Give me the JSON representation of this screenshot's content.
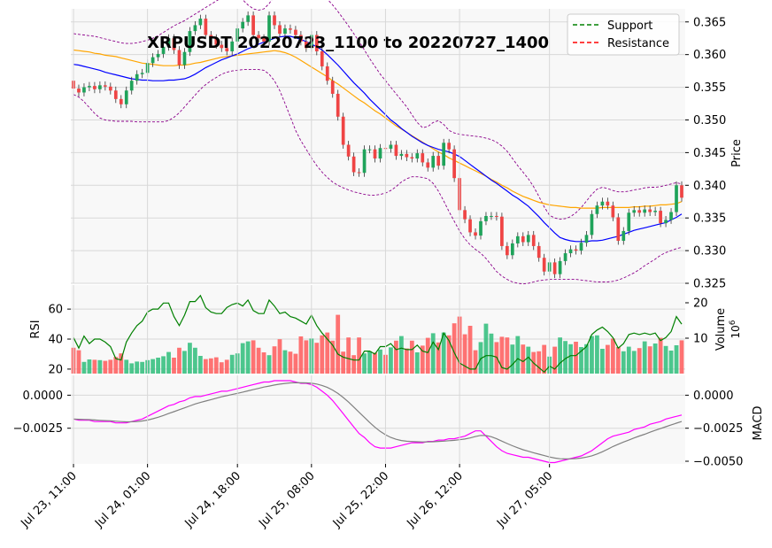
{
  "chart_data": [
    {
      "type": "candlestick",
      "panel": "price",
      "title": "XRPUSDT 20220723_1100 to 20220727_1400",
      "ylabel": "Price",
      "ylim": [
        0.325,
        0.367
      ],
      "yticks": [
        "0.325",
        "0.330",
        "0.335",
        "0.340",
        "0.345",
        "0.350",
        "0.355",
        "0.360",
        "0.365"
      ],
      "xticks": [
        "Jul 23, 11:00",
        "Jul 24, 01:00",
        "Jul 24, 18:00",
        "Jul 25, 08:00",
        "Jul 25, 22:00",
        "Jul 26, 12:00",
        "Jul 27, 05:00"
      ],
      "legend": [
        "Support",
        "Resistance"
      ],
      "legend_position": "top-right",
      "grid": true,
      "colors": {
        "up": "#1fa35a",
        "down": "#ef4444",
        "sma": "#0000ff",
        "ema": "#ffa500",
        "bands": "#8b008b",
        "support": "#008000",
        "resistance": "#ff0000"
      },
      "close": [
        0.3548,
        0.3542,
        0.355,
        0.3552,
        0.3547,
        0.3553,
        0.3551,
        0.3545,
        0.3532,
        0.3524,
        0.3545,
        0.356,
        0.357,
        0.3572,
        0.3587,
        0.3596,
        0.3601,
        0.3612,
        0.3625,
        0.3607,
        0.3584,
        0.3604,
        0.3636,
        0.3645,
        0.3655,
        0.363,
        0.3625,
        0.3615,
        0.361,
        0.3605,
        0.362,
        0.364,
        0.365,
        0.366,
        0.363,
        0.3625,
        0.362,
        0.366,
        0.3645,
        0.3632,
        0.364,
        0.3638,
        0.363,
        0.362,
        0.361,
        0.363,
        0.3605,
        0.3582,
        0.356,
        0.354,
        0.3505,
        0.3462,
        0.3444,
        0.342,
        0.3419,
        0.3455,
        0.3455,
        0.3441,
        0.3457,
        0.3456,
        0.3462,
        0.3445,
        0.3448,
        0.3443,
        0.3441,
        0.3449,
        0.3435,
        0.3427,
        0.3445,
        0.343,
        0.3465,
        0.3455,
        0.3411,
        0.3362,
        0.3348,
        0.3328,
        0.3323,
        0.3345,
        0.3353,
        0.3353,
        0.3352,
        0.3307,
        0.3293,
        0.3311,
        0.3322,
        0.3313,
        0.3324,
        0.3307,
        0.3289,
        0.3268,
        0.3282,
        0.3264,
        0.3284,
        0.3296,
        0.3302,
        0.33,
        0.3312,
        0.3324,
        0.3356,
        0.3369,
        0.3375,
        0.3369,
        0.3351,
        0.3315,
        0.333,
        0.3358,
        0.3362,
        0.3358,
        0.3363,
        0.3359,
        0.3361,
        0.3342,
        0.3347,
        0.3359,
        0.34,
        0.3381
      ],
      "sma": [
        0.3585,
        0.3584,
        0.3582,
        0.358,
        0.3578,
        0.3576,
        0.3573,
        0.3571,
        0.3569,
        0.3567,
        0.3565,
        0.3563,
        0.3562,
        0.3561,
        0.3561,
        0.356,
        0.356,
        0.356,
        0.3561,
        0.3561,
        0.3562,
        0.3563,
        0.3566,
        0.357,
        0.3575,
        0.358,
        0.3584,
        0.3588,
        0.3592,
        0.3595,
        0.3598,
        0.3601,
        0.3605,
        0.3609,
        0.3612,
        0.3616,
        0.3619,
        0.3622,
        0.3625,
        0.3627,
        0.3628,
        0.3628,
        0.3626,
        0.3623,
        0.362,
        0.3616,
        0.3612,
        0.3607,
        0.36,
        0.3592,
        0.3584,
        0.3575,
        0.3566,
        0.3557,
        0.3549,
        0.3541,
        0.3532,
        0.3524,
        0.3516,
        0.3508,
        0.35,
        0.3494,
        0.3487,
        0.3481,
        0.3475,
        0.347,
        0.3465,
        0.3461,
        0.3458,
        0.3455,
        0.3453,
        0.3451,
        0.3448,
        0.3444,
        0.3438,
        0.3432,
        0.3426,
        0.342,
        0.3414,
        0.3408,
        0.3403,
        0.3397,
        0.3391,
        0.3385,
        0.338,
        0.3374,
        0.3368,
        0.336,
        0.3352,
        0.3343,
        0.3335,
        0.3327,
        0.332,
        0.3317,
        0.3315,
        0.3314,
        0.3314,
        0.3314,
        0.3315,
        0.3315,
        0.3316,
        0.3318,
        0.332,
        0.3322,
        0.3325,
        0.3328,
        0.3331,
        0.3333,
        0.3335,
        0.3337,
        0.3339,
        0.3341,
        0.3343,
        0.3347,
        0.3351,
        0.3356
      ],
      "ema": [
        0.3607,
        0.3606,
        0.3605,
        0.3604,
        0.3602,
        0.3601,
        0.3599,
        0.3598,
        0.3597,
        0.3595,
        0.3593,
        0.3591,
        0.3589,
        0.3587,
        0.3586,
        0.3585,
        0.3584,
        0.3583,
        0.3583,
        0.3583,
        0.3584,
        0.3584,
        0.3585,
        0.3587,
        0.3588,
        0.359,
        0.3592,
        0.3594,
        0.3596,
        0.3597,
        0.3598,
        0.3599,
        0.36,
        0.3601,
        0.3602,
        0.3603,
        0.3604,
        0.3605,
        0.3606,
        0.3605,
        0.3603,
        0.36,
        0.3596,
        0.3591,
        0.3586,
        0.3581,
        0.3576,
        0.3571,
        0.3566,
        0.356,
        0.3555,
        0.3549,
        0.3543,
        0.3537,
        0.3531,
        0.3526,
        0.352,
        0.3514,
        0.3509,
        0.3503,
        0.3497,
        0.3491,
        0.3486,
        0.3481,
        0.3476,
        0.3471,
        0.3466,
        0.3461,
        0.3456,
        0.3451,
        0.3447,
        0.3442,
        0.3438,
        0.3434,
        0.343,
        0.3426,
        0.3422,
        0.3418,
        0.3414,
        0.3409,
        0.3405,
        0.34,
        0.3396,
        0.3391,
        0.3387,
        0.3383,
        0.338,
        0.3377,
        0.3374,
        0.3372,
        0.337,
        0.3369,
        0.3368,
        0.3367,
        0.3366,
        0.3366,
        0.3365,
        0.3365,
        0.3365,
        0.3365,
        0.3366,
        0.3366,
        0.3366,
        0.3366,
        0.3366,
        0.3366,
        0.3367,
        0.3367,
        0.3368,
        0.3368,
        0.3369,
        0.337,
        0.337,
        0.3371,
        0.3372,
        0.3375
      ],
      "bb_upper": [
        0.3632,
        0.3631,
        0.363,
        0.3629,
        0.3628,
        0.3626,
        0.3624,
        0.3622,
        0.362,
        0.3618,
        0.3617,
        0.3617,
        0.3618,
        0.362,
        0.3622,
        0.3625,
        0.3629,
        0.3634,
        0.3639,
        0.3644,
        0.3648,
        0.3652,
        0.3657,
        0.3662,
        0.3667,
        0.3672,
        0.3677,
        0.3682,
        0.3687,
        0.3692,
        0.3693,
        0.369,
        0.3684,
        0.3676,
        0.367,
        0.3668,
        0.367,
        0.3678,
        0.369,
        0.37,
        0.3705,
        0.3708,
        0.3709,
        0.371,
        0.371,
        0.3706,
        0.37,
        0.3693,
        0.3685,
        0.3676,
        0.3666,
        0.3655,
        0.3644,
        0.3632,
        0.362,
        0.3607,
        0.3594,
        0.3582,
        0.357,
        0.356,
        0.355,
        0.354,
        0.353,
        0.352,
        0.3508,
        0.3496,
        0.3488,
        0.349,
        0.3496,
        0.3499,
        0.3493,
        0.3484,
        0.348,
        0.3478,
        0.3477,
        0.3476,
        0.3475,
        0.3474,
        0.3472,
        0.347,
        0.3466,
        0.346,
        0.3452,
        0.3441,
        0.343,
        0.342,
        0.341,
        0.3398,
        0.3383,
        0.3367,
        0.3354,
        0.335,
        0.3348,
        0.3349,
        0.3352,
        0.3358,
        0.3366,
        0.3376,
        0.3386,
        0.3394,
        0.3397,
        0.3395,
        0.3392,
        0.339,
        0.339,
        0.3391,
        0.3393,
        0.3394,
        0.3396,
        0.3397,
        0.3397,
        0.3398,
        0.34,
        0.3402,
        0.3404,
        0.3402
      ],
      "bb_lower": [
        0.3539,
        0.3535,
        0.3528,
        0.3519,
        0.351,
        0.3503,
        0.35,
        0.3499,
        0.3498,
        0.3498,
        0.3498,
        0.3498,
        0.3497,
        0.3497,
        0.3497,
        0.3497,
        0.3497,
        0.3497,
        0.3499,
        0.3504,
        0.3511,
        0.352,
        0.3529,
        0.3538,
        0.3547,
        0.3554,
        0.356,
        0.3565,
        0.357,
        0.3573,
        0.3575,
        0.3576,
        0.3577,
        0.3577,
        0.3577,
        0.3577,
        0.3576,
        0.357,
        0.356,
        0.3545,
        0.3525,
        0.3505,
        0.3484,
        0.3468,
        0.3455,
        0.3442,
        0.343,
        0.342,
        0.3412,
        0.3405,
        0.34,
        0.3396,
        0.3393,
        0.339,
        0.3388,
        0.3386,
        0.3385,
        0.3385,
        0.3386,
        0.3388,
        0.3392,
        0.3398,
        0.3405,
        0.341,
        0.3413,
        0.3413,
        0.3412,
        0.341,
        0.3403,
        0.3391,
        0.3376,
        0.336,
        0.3345,
        0.333,
        0.3318,
        0.3309,
        0.3302,
        0.3296,
        0.3288,
        0.3278,
        0.3268,
        0.3261,
        0.3256,
        0.3252,
        0.325,
        0.3249,
        0.325,
        0.3252,
        0.3254,
        0.3255,
        0.3256,
        0.3256,
        0.3256,
        0.3256,
        0.3256,
        0.3256,
        0.3255,
        0.3254,
        0.3253,
        0.3252,
        0.3252,
        0.3252,
        0.3253,
        0.3255,
        0.3258,
        0.3262,
        0.3266,
        0.3271,
        0.3277,
        0.3282,
        0.3287,
        0.3293,
        0.3297,
        0.33,
        0.3303,
        0.3305
      ]
    },
    {
      "type": "line",
      "panel": "rsi",
      "ylabel": "RSI",
      "yticks": [
        "20",
        "40",
        "60"
      ],
      "ylim": [
        17,
        76
      ],
      "rsi": [
        41,
        34,
        42,
        37,
        40,
        40,
        38,
        35,
        27,
        26,
        38,
        44,
        49,
        52,
        58,
        60,
        60,
        64,
        64,
        55,
        49,
        56,
        65,
        65,
        69,
        61,
        58,
        57,
        57,
        61,
        63,
        64,
        62,
        66,
        59,
        57,
        57,
        66,
        62,
        57,
        58,
        55,
        54,
        52,
        50,
        56,
        49,
        44,
        40,
        36,
        30,
        28,
        27,
        26,
        26,
        32,
        32,
        30,
        35,
        35,
        37,
        33,
        34,
        33,
        33,
        36,
        32,
        31,
        38,
        33,
        44,
        39,
        31,
        24,
        22,
        20,
        20,
        27,
        29,
        29,
        28,
        21,
        20,
        23,
        27,
        25,
        28,
        24,
        21,
        18,
        22,
        20,
        24,
        27,
        29,
        29,
        32,
        35,
        43,
        46,
        48,
        45,
        41,
        34,
        37,
        43,
        44,
        43,
        44,
        43,
        44,
        39,
        41,
        45,
        55,
        50
      ]
    },
    {
      "type": "bar",
      "panel": "volume",
      "ylabel": "Volume",
      "scale_label": "10^6",
      "yticks": [
        "10",
        "20"
      ],
      "ylim": [
        0,
        25
      ],
      "volume": [
        7.3,
        6.6,
        3.3,
        4.0,
        3.9,
        3.8,
        3.6,
        3.9,
        4.7,
        5.7,
        3.9,
        2.9,
        3.4,
        3.3,
        3.8,
        4.1,
        4.5,
        4.9,
        6.1,
        4.5,
        7.3,
        6.4,
        8.7,
        7.3,
        5.0,
        4.1,
        4.3,
        4.6,
        3.2,
        3.9,
        5.3,
        5.7,
        8.6,
        9.1,
        9.4,
        7.3,
        6.0,
        5.2,
        7.7,
        9.7,
        6.6,
        6.2,
        5.6,
        10.5,
        9.4,
        9.9,
        8.7,
        10.8,
        11.6,
        9.3,
        16.6,
        6.2,
        10.2,
        5.2,
        10.2,
        5.7,
        6.3,
        5.9,
        6.8,
        5.3,
        7.4,
        9.3,
        10.6,
        7.1,
        9.3,
        6.0,
        7.9,
        10.1,
        11.4,
        8.8,
        11.6,
        10.8,
        14.2,
        16.1,
        11.1,
        13.5,
        6.6,
        8.9,
        14.1,
        11.3,
        8.9,
        10.4,
        10.2,
        8.2,
        10.6,
        8.2,
        7.6,
        6.1,
        6.3,
        8.1,
        4.8,
        7.6,
        10.2,
        9.2,
        8.3,
        9.0,
        7.5,
        8.3,
        10.6,
        10.8,
        7.0,
        8.1,
        9.9,
        7.5,
        6.3,
        7.6,
        6.4,
        7.2,
        9.1,
        7.7,
        8.5,
        10.1,
        7.8,
        6.5,
        8.0,
        9.4
      ]
    },
    {
      "type": "line",
      "panel": "macd",
      "ylabel": "MACD",
      "yticks": [
        "0.0000",
        "−0.0025"
      ],
      "yticks_right": [
        "0.0000",
        "−0.0025",
        "−0.0050"
      ],
      "ylim": [
        -0.0052,
        0.0015
      ],
      "colors": {
        "macd": "#ff00ff",
        "signal": "#808080"
      },
      "macd": [
        -0.0018,
        -0.0019,
        -0.0019,
        -0.0019,
        -0.002,
        -0.002,
        -0.002,
        -0.002,
        -0.0021,
        -0.0021,
        -0.0021,
        -0.002,
        -0.0019,
        -0.0018,
        -0.0016,
        -0.0014,
        -0.0012,
        -0.001,
        -0.0008,
        -0.0007,
        -0.0005,
        -0.0004,
        -0.0002,
        -0.0001,
        -0.0001,
        0.0,
        0.0001,
        0.0002,
        0.0003,
        0.0003,
        0.0004,
        0.0005,
        0.0006,
        0.0007,
        0.0008,
        0.0009,
        0.001,
        0.001,
        0.0011,
        0.0011,
        0.0011,
        0.0011,
        0.001,
        0.0009,
        0.0009,
        0.0008,
        0.0006,
        0.0003,
        0.0,
        -0.0004,
        -0.0009,
        -0.0014,
        -0.0019,
        -0.0024,
        -0.0029,
        -0.0032,
        -0.0036,
        -0.0039,
        -0.004,
        -0.004,
        -0.004,
        -0.0039,
        -0.0038,
        -0.0037,
        -0.0036,
        -0.0036,
        -0.0036,
        -0.0035,
        -0.0035,
        -0.0034,
        -0.0034,
        -0.0033,
        -0.0033,
        -0.0032,
        -0.0031,
        -0.0029,
        -0.0027,
        -0.0027,
        -0.0031,
        -0.0035,
        -0.0039,
        -0.0042,
        -0.0044,
        -0.0045,
        -0.0046,
        -0.0047,
        -0.0047,
        -0.0048,
        -0.0049,
        -0.005,
        -0.0051,
        -0.0051,
        -0.005,
        -0.0049,
        -0.0048,
        -0.0047,
        -0.0046,
        -0.0044,
        -0.0042,
        -0.0039,
        -0.0036,
        -0.0033,
        -0.0031,
        -0.003,
        -0.0029,
        -0.0028,
        -0.0026,
        -0.0025,
        -0.0024,
        -0.0022,
        -0.0021,
        -0.002,
        -0.0018,
        -0.0017,
        -0.0016,
        -0.0015
      ]
    }
  ]
}
